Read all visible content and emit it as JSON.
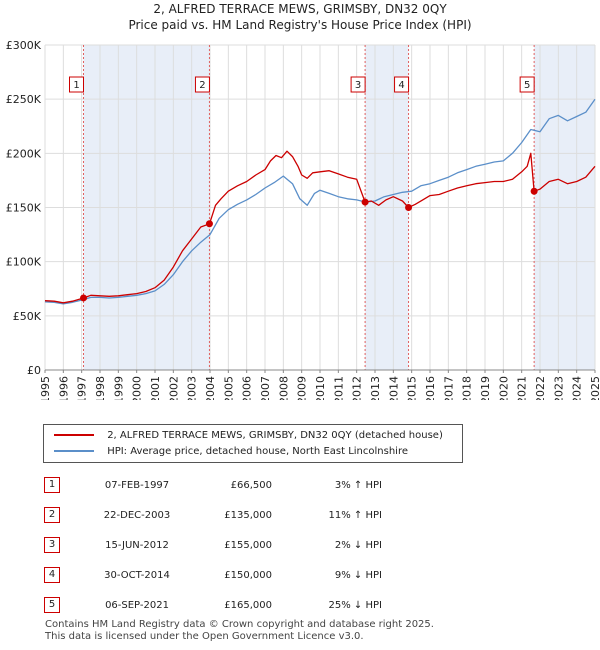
{
  "header": {
    "title": "2, ALFRED TERRACE MEWS, GRIMSBY, DN32 0QY",
    "subtitle": "Price paid vs. HM Land Registry's House Price Index (HPI)"
  },
  "chart_data": {
    "type": "line",
    "title": "2, ALFRED TERRACE MEWS, GRIMSBY, DN32 0QY",
    "subtitle": "Price paid vs. HM Land Registry's House Price Index (HPI)",
    "xlabel": "",
    "ylabel": "",
    "xlim": [
      1995,
      2025
    ],
    "ylim": [
      0,
      300000
    ],
    "y_ticks": [
      0,
      50000,
      100000,
      150000,
      200000,
      250000,
      300000
    ],
    "y_tick_labels": [
      "£0",
      "£50K",
      "£100K",
      "£150K",
      "£200K",
      "£250K",
      "£300K"
    ],
    "x_ticks": [
      1995,
      1996,
      1997,
      1998,
      1999,
      2000,
      2001,
      2002,
      2003,
      2004,
      2005,
      2006,
      2007,
      2008,
      2009,
      2010,
      2011,
      2012,
      2013,
      2014,
      2015,
      2016,
      2017,
      2018,
      2019,
      2020,
      2021,
      2022,
      2023,
      2024,
      2025
    ],
    "grid": true,
    "series": [
      {
        "name": "2, ALFRED TERRACE MEWS, GRIMSBY, DN32 0QY (detached house)",
        "color": "#cc0000",
        "x": [
          1995.0,
          1995.5,
          1996.0,
          1996.5,
          1997.1,
          1997.5,
          1998.0,
          1998.5,
          1999.0,
          1999.5,
          2000.0,
          2000.5,
          2001.0,
          2001.5,
          2002.0,
          2002.5,
          2003.0,
          2003.5,
          2003.97,
          2004.3,
          2004.6,
          2005.0,
          2005.5,
          2006.0,
          2006.5,
          2007.0,
          2007.3,
          2007.6,
          2007.9,
          2008.2,
          2008.5,
          2008.8,
          2009.0,
          2009.3,
          2009.6,
          2010.0,
          2010.5,
          2011.0,
          2011.5,
          2012.0,
          2012.46,
          2012.8,
          2013.2,
          2013.6,
          2014.0,
          2014.5,
          2014.83,
          2015.2,
          2015.6,
          2016.0,
          2016.5,
          2017.0,
          2017.5,
          2018.0,
          2018.5,
          2019.0,
          2019.5,
          2020.0,
          2020.5,
          2021.0,
          2021.3,
          2021.5,
          2021.68,
          2022.0,
          2022.5,
          2023.0,
          2023.5,
          2024.0,
          2024.5,
          2025.0
        ],
        "y": [
          64000,
          63500,
          62000,
          63500,
          66500,
          69000,
          68500,
          68000,
          68500,
          69500,
          70500,
          72500,
          76000,
          83000,
          95000,
          110000,
          121000,
          132000,
          135000,
          152000,
          158000,
          165000,
          170000,
          174000,
          180000,
          185000,
          193000,
          198000,
          196000,
          202000,
          197000,
          188000,
          180000,
          177000,
          182000,
          183000,
          184000,
          181000,
          178000,
          176000,
          155000,
          156000,
          152000,
          157000,
          160000,
          156000,
          150000,
          153000,
          157000,
          161000,
          162000,
          165000,
          168000,
          170000,
          172000,
          173000,
          174000,
          174000,
          176000,
          183000,
          188000,
          200000,
          165000,
          167000,
          174000,
          176000,
          172000,
          174000,
          178000,
          188000
        ]
      },
      {
        "name": "HPI: Average price, detached house, North East Lincolnshire",
        "color": "#5b8fc9",
        "x": [
          1995.0,
          1995.5,
          1996.0,
          1996.5,
          1997.0,
          1997.5,
          1998.0,
          1998.5,
          1999.0,
          1999.5,
          2000.0,
          2000.5,
          2001.0,
          2001.5,
          2002.0,
          2002.5,
          2003.0,
          2003.5,
          2004.0,
          2004.5,
          2005.0,
          2005.5,
          2006.0,
          2006.5,
          2007.0,
          2007.5,
          2008.0,
          2008.5,
          2008.9,
          2009.3,
          2009.7,
          2010.0,
          2010.5,
          2011.0,
          2011.5,
          2012.0,
          2012.5,
          2013.0,
          2013.5,
          2014.0,
          2014.5,
          2015.0,
          2015.5,
          2016.0,
          2016.5,
          2017.0,
          2017.5,
          2018.0,
          2018.5,
          2019.0,
          2019.5,
          2020.0,
          2020.5,
          2021.0,
          2021.5,
          2022.0,
          2022.5,
          2023.0,
          2023.5,
          2024.0,
          2024.5,
          2025.0
        ],
        "y": [
          63000,
          62500,
          61000,
          62500,
          64500,
          67000,
          67000,
          66500,
          67000,
          68000,
          69000,
          70500,
          73000,
          79000,
          88000,
          100000,
          110000,
          118000,
          125000,
          140000,
          148000,
          153000,
          157000,
          162000,
          168000,
          173000,
          179000,
          172000,
          158000,
          152000,
          163000,
          166000,
          163000,
          160000,
          158000,
          157000,
          155000,
          156000,
          160000,
          162000,
          164000,
          165000,
          170000,
          172000,
          175000,
          178000,
          182000,
          185000,
          188000,
          190000,
          192000,
          193000,
          200000,
          210000,
          222000,
          220000,
          232000,
          235000,
          230000,
          234000,
          238000,
          250000
        ]
      }
    ],
    "sales": [
      {
        "n": "1",
        "x": 1997.1,
        "y": 66500
      },
      {
        "n": "2",
        "x": 2003.97,
        "y": 135000
      },
      {
        "n": "3",
        "x": 2012.46,
        "y": 155000
      },
      {
        "n": "4",
        "x": 2014.83,
        "y": 150000
      },
      {
        "n": "5",
        "x": 2021.68,
        "y": 165000
      }
    ],
    "shaded_ranges": [
      [
        1997.1,
        2003.97
      ],
      [
        2012.46,
        2014.83
      ],
      [
        2021.68,
        2025.0
      ]
    ]
  },
  "legend": {
    "items": [
      {
        "label": "2, ALFRED TERRACE MEWS, GRIMSBY, DN32 0QY (detached house)",
        "color": "#cc0000"
      },
      {
        "label": "HPI: Average price, detached house, North East Lincolnshire",
        "color": "#5b8fc9"
      }
    ]
  },
  "table": {
    "rows": [
      {
        "n": "1",
        "date": "07-FEB-1997",
        "price": "£66,500",
        "hpi": "3% ↑ HPI"
      },
      {
        "n": "2",
        "date": "22-DEC-2003",
        "price": "£135,000",
        "hpi": "11% ↑ HPI"
      },
      {
        "n": "3",
        "date": "15-JUN-2012",
        "price": "£155,000",
        "hpi": "2% ↓ HPI"
      },
      {
        "n": "4",
        "date": "30-OCT-2014",
        "price": "£150,000",
        "hpi": "9% ↓ HPI"
      },
      {
        "n": "5",
        "date": "06-SEP-2021",
        "price": "£165,000",
        "hpi": "25% ↓ HPI"
      }
    ]
  },
  "footer": {
    "line1": "Contains HM Land Registry data © Crown copyright and database right 2025.",
    "line2": "This data is licensed under the Open Government Licence v3.0."
  }
}
